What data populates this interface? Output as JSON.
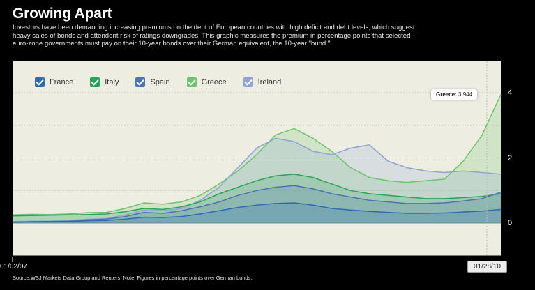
{
  "header": {
    "title": "Growing Apart",
    "description": "Investors have been demanding increasing premiums on the debt of European countries with high deficit and debt levels, which suggest heavy sales of bonds and attendent risk of ratings downgrades. This graphic measures the premium in percentage points that selected euro-zone governments must pay on their 10-year bonds over their German equivalent, the 10-year \"bund.\""
  },
  "legend": [
    {
      "label": "France",
      "color": "#2d6cb0"
    },
    {
      "label": "Italy",
      "color": "#2aa35a"
    },
    {
      "label": "Spain",
      "color": "#4c74b0"
    },
    {
      "label": "Greece",
      "color": "#6cc46c"
    },
    {
      "label": "Ireland",
      "color": "#8fa3d4"
    }
  ],
  "tooltip": {
    "label": "Greece:",
    "value": "3.944"
  },
  "footer": {
    "x_start": "01/02/07",
    "x_end": "01/28/10",
    "source": "Source:WSJ Markets Data Group and Reuters; Note: Figures in percentage points over German bunds."
  },
  "chart_data": {
    "type": "area",
    "title": "Growing Apart",
    "ylabel": "",
    "xlabel": "",
    "ylim": [
      -1,
      4.2
    ],
    "yticks": [
      "4",
      "2",
      "0"
    ],
    "yticks_values": [
      4,
      2,
      0
    ],
    "x": [
      "2007-01",
      "2007-03",
      "2007-05",
      "2007-07",
      "2007-09",
      "2007-11",
      "2008-01",
      "2008-03",
      "2008-05",
      "2008-07",
      "2008-09",
      "2008-10",
      "2008-11",
      "2008-12",
      "2009-01",
      "2009-02",
      "2009-03",
      "2009-04",
      "2009-05",
      "2009-06",
      "2009-07",
      "2009-08",
      "2009-09",
      "2009-10",
      "2009-11",
      "2009-12",
      "2010-01"
    ],
    "series": [
      {
        "name": "Greece",
        "color": "#6cc46c",
        "values": [
          0.25,
          0.27,
          0.26,
          0.28,
          0.32,
          0.33,
          0.45,
          0.62,
          0.58,
          0.65,
          0.85,
          1.2,
          1.6,
          2.1,
          2.7,
          2.9,
          2.6,
          2.2,
          1.7,
          1.4,
          1.3,
          1.25,
          1.3,
          1.35,
          1.9,
          2.7,
          3.944
        ]
      },
      {
        "name": "Ireland",
        "color": "#8fa3d4",
        "values": [
          0.05,
          0.06,
          0.06,
          0.08,
          0.12,
          0.14,
          0.25,
          0.4,
          0.38,
          0.45,
          0.7,
          1.1,
          1.7,
          2.3,
          2.6,
          2.5,
          2.2,
          2.1,
          2.3,
          2.4,
          1.9,
          1.7,
          1.6,
          1.55,
          1.6,
          1.55,
          1.5
        ]
      },
      {
        "name": "Italy",
        "color": "#2aa35a",
        "values": [
          0.22,
          0.23,
          0.24,
          0.25,
          0.26,
          0.28,
          0.35,
          0.45,
          0.42,
          0.5,
          0.65,
          0.9,
          1.1,
          1.3,
          1.45,
          1.5,
          1.4,
          1.2,
          1.0,
          0.9,
          0.85,
          0.8,
          0.75,
          0.75,
          0.78,
          0.82,
          0.9
        ]
      },
      {
        "name": "Spain",
        "color": "#4c74b0",
        "values": [
          0.03,
          0.04,
          0.05,
          0.06,
          0.1,
          0.12,
          0.2,
          0.33,
          0.3,
          0.38,
          0.5,
          0.65,
          0.85,
          1.0,
          1.1,
          1.15,
          1.05,
          0.9,
          0.8,
          0.7,
          0.65,
          0.6,
          0.6,
          0.62,
          0.68,
          0.75,
          0.95
        ]
      },
      {
        "name": "France",
        "color": "#2d6cb0",
        "values": [
          0.03,
          0.04,
          0.05,
          0.05,
          0.07,
          0.08,
          0.12,
          0.18,
          0.17,
          0.2,
          0.28,
          0.38,
          0.48,
          0.55,
          0.6,
          0.62,
          0.55,
          0.45,
          0.4,
          0.36,
          0.33,
          0.3,
          0.3,
          0.31,
          0.34,
          0.37,
          0.42
        ]
      }
    ]
  }
}
